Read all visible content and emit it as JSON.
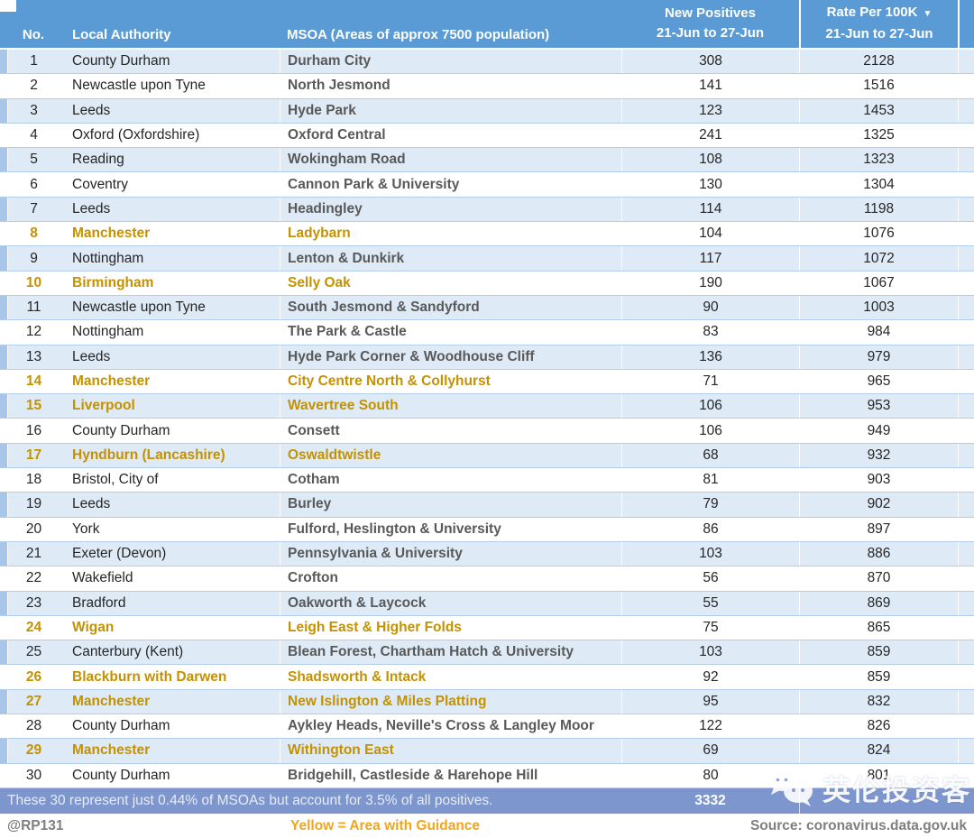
{
  "colors": {
    "header_blue": "#5B9BD5",
    "band_blue": "#DEEAF6",
    "strip_blue": "#A8C7E8",
    "summary_bg": "#7D96CE",
    "highlight_gold": "#C49200",
    "footer_gold": "#EFA51D"
  },
  "header": {
    "col_no": "No.",
    "col_la": "Local Authority",
    "col_msoa": "MSOA (Areas of approx 7500 population)",
    "col_pos": "New Positives",
    "col_rate": "Rate Per 100K",
    "sort_icon": "▼",
    "period": "21-Jun to 27-Jun"
  },
  "rows": [
    {
      "no": 1,
      "la": "County Durham",
      "msoa": "Durham City",
      "pos": 308,
      "rate": 2128,
      "highlight": false
    },
    {
      "no": 2,
      "la": "Newcastle upon Tyne",
      "msoa": "North Jesmond",
      "pos": 141,
      "rate": 1516,
      "highlight": false
    },
    {
      "no": 3,
      "la": "Leeds",
      "msoa": "Hyde Park",
      "pos": 123,
      "rate": 1453,
      "highlight": false
    },
    {
      "no": 4,
      "la": "Oxford (Oxfordshire)",
      "msoa": "Oxford Central",
      "pos": 241,
      "rate": 1325,
      "highlight": false
    },
    {
      "no": 5,
      "la": "Reading",
      "msoa": "Wokingham Road",
      "pos": 108,
      "rate": 1323,
      "highlight": false
    },
    {
      "no": 6,
      "la": "Coventry",
      "msoa": "Cannon Park & University",
      "pos": 130,
      "rate": 1304,
      "highlight": false
    },
    {
      "no": 7,
      "la": "Leeds",
      "msoa": "Headingley",
      "pos": 114,
      "rate": 1198,
      "highlight": false
    },
    {
      "no": 8,
      "la": "Manchester",
      "msoa": "Ladybarn",
      "pos": 104,
      "rate": 1076,
      "highlight": true
    },
    {
      "no": 9,
      "la": "Nottingham",
      "msoa": "Lenton & Dunkirk",
      "pos": 117,
      "rate": 1072,
      "highlight": false
    },
    {
      "no": 10,
      "la": "Birmingham",
      "msoa": "Selly Oak",
      "pos": 190,
      "rate": 1067,
      "highlight": true
    },
    {
      "no": 11,
      "la": "Newcastle upon Tyne",
      "msoa": "South Jesmond & Sandyford",
      "pos": 90,
      "rate": 1003,
      "highlight": false
    },
    {
      "no": 12,
      "la": "Nottingham",
      "msoa": "The Park & Castle",
      "pos": 83,
      "rate": 984,
      "highlight": false
    },
    {
      "no": 13,
      "la": "Leeds",
      "msoa": "Hyde Park Corner & Woodhouse Cliff",
      "pos": 136,
      "rate": 979,
      "highlight": false
    },
    {
      "no": 14,
      "la": "Manchester",
      "msoa": "City Centre North & Collyhurst",
      "pos": 71,
      "rate": 965,
      "highlight": true
    },
    {
      "no": 15,
      "la": "Liverpool",
      "msoa": "Wavertree South",
      "pos": 106,
      "rate": 953,
      "highlight": true
    },
    {
      "no": 16,
      "la": "County Durham",
      "msoa": "Consett",
      "pos": 106,
      "rate": 949,
      "highlight": false
    },
    {
      "no": 17,
      "la": "Hyndburn (Lancashire)",
      "msoa": "Oswaldtwistle",
      "pos": 68,
      "rate": 932,
      "highlight": true
    },
    {
      "no": 18,
      "la": "Bristol, City of",
      "msoa": "Cotham",
      "pos": 81,
      "rate": 903,
      "highlight": false
    },
    {
      "no": 19,
      "la": "Leeds",
      "msoa": "Burley",
      "pos": 79,
      "rate": 902,
      "highlight": false
    },
    {
      "no": 20,
      "la": "York",
      "msoa": "Fulford, Heslington & University",
      "pos": 86,
      "rate": 897,
      "highlight": false
    },
    {
      "no": 21,
      "la": "Exeter (Devon)",
      "msoa": "Pennsylvania & University",
      "pos": 103,
      "rate": 886,
      "highlight": false
    },
    {
      "no": 22,
      "la": "Wakefield",
      "msoa": "Crofton",
      "pos": 56,
      "rate": 870,
      "highlight": false
    },
    {
      "no": 23,
      "la": "Bradford",
      "msoa": "Oakworth & Laycock",
      "pos": 55,
      "rate": 869,
      "highlight": false
    },
    {
      "no": 24,
      "la": "Wigan",
      "msoa": "Leigh East & Higher Folds",
      "pos": 75,
      "rate": 865,
      "highlight": true
    },
    {
      "no": 25,
      "la": "Canterbury (Kent)",
      "msoa": "Blean Forest, Chartham Hatch & University",
      "pos": 103,
      "rate": 859,
      "highlight": false
    },
    {
      "no": 26,
      "la": "Blackburn with Darwen",
      "msoa": "Shadsworth & Intack",
      "pos": 92,
      "rate": 859,
      "highlight": true
    },
    {
      "no": 27,
      "la": "Manchester",
      "msoa": "New Islington & Miles Platting",
      "pos": 95,
      "rate": 832,
      "highlight": true
    },
    {
      "no": 28,
      "la": "County Durham",
      "msoa": "Aykley Heads, Neville's Cross & Langley Moor",
      "pos": 122,
      "rate": 826,
      "highlight": false
    },
    {
      "no": 29,
      "la": "Manchester",
      "msoa": "Withington East",
      "pos": 69,
      "rate": 824,
      "highlight": true
    },
    {
      "no": 30,
      "la": "County Durham",
      "msoa": "Bridgehill, Castleside & Harehope Hill",
      "pos": 80,
      "rate": 801,
      "highlight": false
    }
  ],
  "summary": {
    "text": "These 30 represent just 0.44% of MSOAs but account for 3.5% of all positives.",
    "total": "3332"
  },
  "footer": {
    "handle": "@RP131",
    "legend": "Yellow = Area with Guidance",
    "source": "Source: coronavirus.data.gov.uk"
  },
  "watermark": {
    "text": "英伦投资客"
  }
}
